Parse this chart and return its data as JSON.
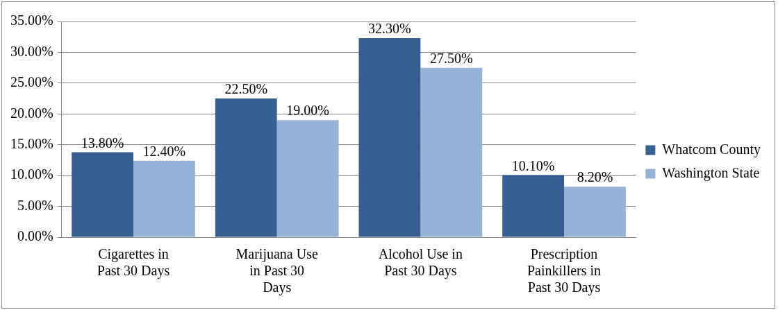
{
  "chart_data": {
    "type": "bar",
    "categories": [
      "Cigarettes in Past 30 Days",
      "Marijuana Use in Past 30 Days",
      "Alcohol Use in Past 30 Days",
      "Prescription Painkillers in Past 30 Days"
    ],
    "series": [
      {
        "name": "Whatcom County",
        "color": "#376092",
        "values": [
          13.8,
          22.5,
          32.3,
          10.1
        ],
        "value_labels": [
          "13.80%",
          "22.50%",
          "32.30%",
          "10.10%"
        ]
      },
      {
        "name": "Washington State",
        "color": "#95b3d7",
        "values": [
          12.4,
          19.0,
          27.5,
          8.2
        ],
        "value_labels": [
          "12.40%",
          "19.00%",
          "27.50%",
          "8.20%"
        ]
      }
    ],
    "ylim": [
      0,
      35
    ],
    "yticks": [
      {
        "value": 0,
        "label": "0.00%"
      },
      {
        "value": 5,
        "label": "5.00%"
      },
      {
        "value": 10,
        "label": "10.00%"
      },
      {
        "value": 15,
        "label": "15.00%"
      },
      {
        "value": 20,
        "label": "20.00%"
      },
      {
        "value": 25,
        "label": "25.00%"
      },
      {
        "value": 30,
        "label": "30.00%"
      },
      {
        "value": 35,
        "label": "35.00%"
      }
    ],
    "grid": "y",
    "legend": "right"
  }
}
